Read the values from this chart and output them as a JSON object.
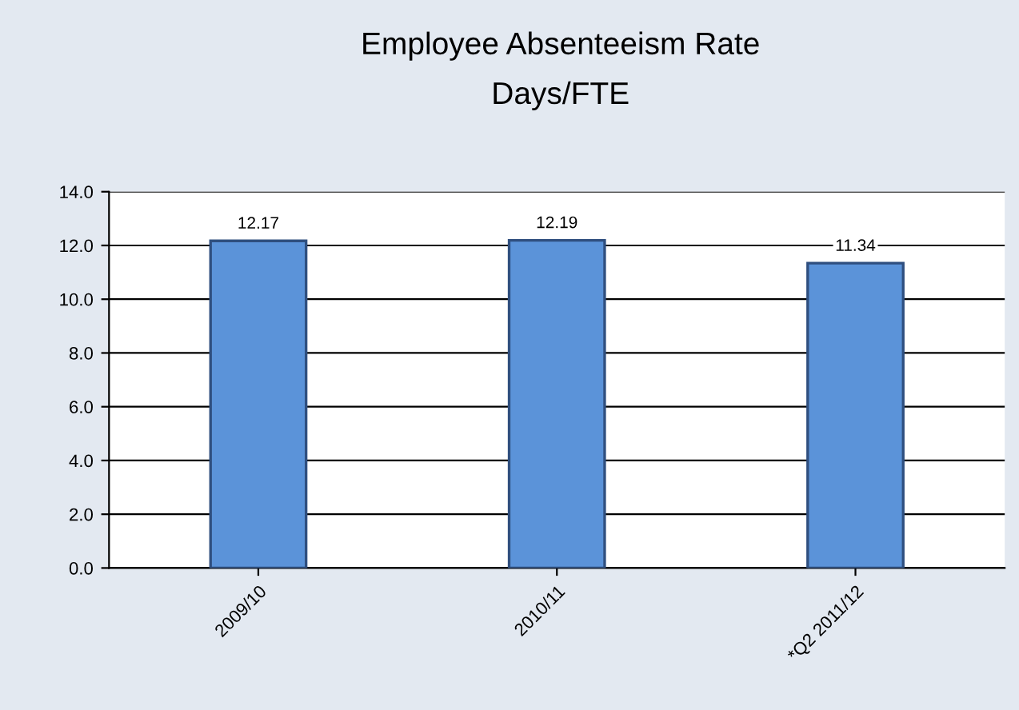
{
  "chart_data": {
    "type": "bar",
    "title": "Employee Absenteeism Rate",
    "subtitle": "Days/FTE",
    "categories": [
      "2009/10",
      "2010/11",
      "*Q2 2011/12"
    ],
    "values": [
      12.17,
      12.19,
      11.34
    ],
    "color": "#5b93d9",
    "data_labels": true,
    "ylim": [
      0,
      14
    ],
    "yticks": [
      {
        "value": 0,
        "label": "0.0"
      },
      {
        "value": 2,
        "label": "2.0"
      },
      {
        "value": 4,
        "label": "4.0"
      },
      {
        "value": 6,
        "label": "6.0"
      },
      {
        "value": 8,
        "label": "8.0"
      },
      {
        "value": 10,
        "label": "10.0"
      },
      {
        "value": 12,
        "label": "12.0"
      },
      {
        "value": 14,
        "label": "14.0"
      }
    ],
    "grid": "y",
    "legend": false
  }
}
